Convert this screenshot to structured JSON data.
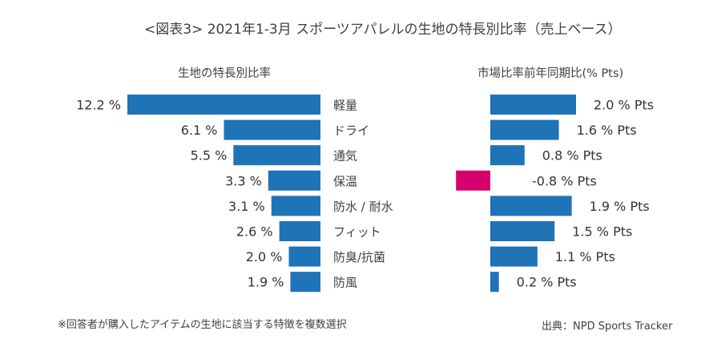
{
  "title": "<図表3> 2021年1-3月 スポーツアパレルの生地の特長別比率（売上ベース）",
  "footnote": "※回答者が購入したアイテムの生地に該当する特徴を複数選択",
  "source": "出典：NPD Sports Tracker",
  "colors": {
    "positive": "#1f73b7",
    "negative": "#d5006d"
  },
  "chart_data": [
    {
      "type": "bar",
      "orientation": "horizontal",
      "title": "生地の特長別比率",
      "categories": [
        "軽量",
        "ドライ",
        "通気",
        "保温",
        "防水 / 耐水",
        "フィット",
        "防臭/抗菌",
        "防風"
      ],
      "values": [
        12.2,
        6.1,
        5.5,
        3.3,
        3.1,
        2.6,
        2.0,
        1.9
      ],
      "value_labels": [
        "12.2 %",
        "6.1 %",
        "5.5 %",
        "3.3 %",
        "3.1 %",
        "2.6 %",
        "2.0 %",
        "1.9 %"
      ],
      "grid": false,
      "legend": "none"
    },
    {
      "type": "bar",
      "orientation": "horizontal",
      "title": "市場比率前年同期比(% Pts)",
      "categories": [
        "軽量",
        "ドライ",
        "通気",
        "保温",
        "防水 / 耐水",
        "フィット",
        "防臭/抗菌",
        "防風"
      ],
      "values": [
        2.0,
        1.6,
        0.8,
        -0.8,
        1.9,
        1.5,
        1.1,
        0.2
      ],
      "value_labels": [
        "2.0 % Pts",
        "1.6 % Pts",
        "0.8 % Pts",
        "-0.8 % Pts",
        "1.9 % Pts",
        "1.5 % Pts",
        "1.1 % Pts",
        "0.2 % Pts"
      ],
      "grid": false,
      "legend": "none"
    }
  ]
}
